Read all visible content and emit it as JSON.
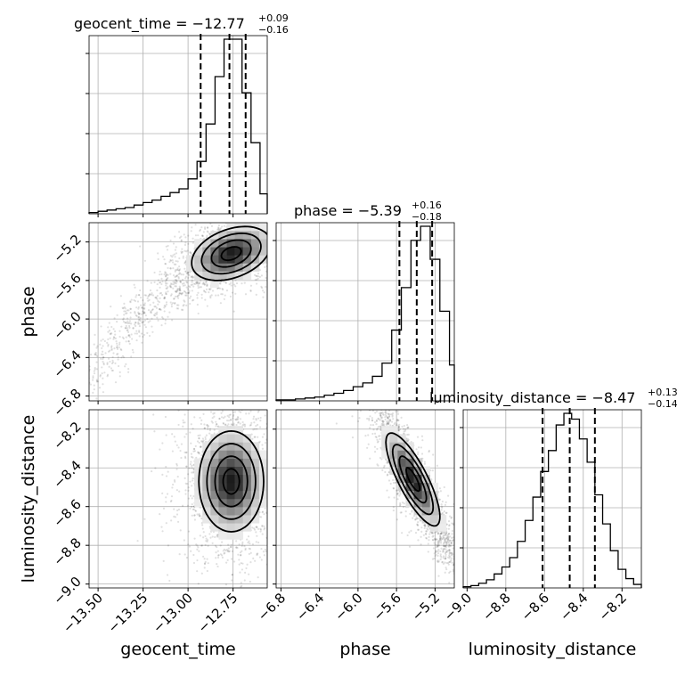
{
  "chart_data": {
    "type": "corner",
    "parameters": [
      {
        "key": "geocent_time",
        "name": "geocent_time",
        "range": [
          -13.55,
          -12.56
        ],
        "ticks": [
          -13.5,
          -13.25,
          -13.0,
          -12.75
        ],
        "tick_labels": [
          "−13.50",
          "−13.25",
          "−13.00",
          "−12.75"
        ],
        "title": {
          "base": "geocent_time = −12.77",
          "sup": "+0.09",
          "sub": "−0.16"
        },
        "quantiles": [
          -12.93,
          -12.77,
          -12.68
        ],
        "histogram": {
          "edges": [
            -13.55,
            -13.5,
            -13.45,
            -13.4,
            -13.35,
            -13.3,
            -13.25,
            -13.2,
            -13.15,
            -13.1,
            -13.05,
            -13.0,
            -12.95,
            -12.9,
            -12.85,
            -12.8,
            -12.75,
            -12.7,
            -12.65,
            -12.6,
            -12.56
          ],
          "counts": [
            1,
            2,
            3,
            4,
            5,
            7,
            9,
            11,
            14,
            17,
            20,
            28,
            42,
            72,
            110,
            140,
            140,
            97,
            57,
            16
          ]
        }
      },
      {
        "key": "phase",
        "name": "phase",
        "range": [
          -6.85,
          -5.0
        ],
        "ticks": [
          -6.8,
          -6.4,
          -6.0,
          -5.6,
          -5.2
        ],
        "tick_labels": [
          "−6.8",
          "−6.4",
          "−6.0",
          "−5.6",
          "−5.2"
        ],
        "title": {
          "base": "phase = −5.39",
          "sup": "+0.16",
          "sub": "−0.18"
        },
        "quantiles": [
          -5.57,
          -5.39,
          -5.23
        ],
        "histogram": {
          "edges": [
            -6.85,
            -6.75,
            -6.65,
            -6.55,
            -6.45,
            -6.35,
            -6.25,
            -6.15,
            -6.05,
            -5.95,
            -5.85,
            -5.75,
            -5.65,
            -5.55,
            -5.45,
            -5.35,
            -5.25,
            -5.15,
            -5.05,
            -5.0
          ],
          "counts": [
            1,
            1,
            2,
            3,
            4,
            6,
            8,
            11,
            15,
            19,
            26,
            40,
            75,
            120,
            170,
            185,
            150,
            95,
            38
          ]
        }
      },
      {
        "key": "luminosity_distance",
        "name": "luminosity_distance",
        "range": [
          -9.02,
          -8.1
        ],
        "ticks": [
          -9.0,
          -8.8,
          -8.6,
          -8.4,
          -8.2
        ],
        "tick_labels": [
          "−9.0",
          "−8.8",
          "−8.6",
          "−8.4",
          "−8.2"
        ],
        "title": {
          "base": "luminosity_distance = −8.47",
          "sup": "+0.13",
          "sub": "−0.14"
        },
        "quantiles": [
          -8.61,
          -8.47,
          -8.34
        ],
        "histogram": {
          "edges": [
            -9.02,
            -8.98,
            -8.94,
            -8.9,
            -8.86,
            -8.82,
            -8.78,
            -8.74,
            -8.7,
            -8.66,
            -8.62,
            -8.58,
            -8.54,
            -8.5,
            -8.46,
            -8.42,
            -8.38,
            -8.34,
            -8.3,
            -8.26,
            -8.22,
            -8.18,
            -8.14,
            -8.1
          ],
          "counts": [
            1,
            2,
            4,
            7,
            12,
            18,
            26,
            40,
            58,
            78,
            100,
            118,
            140,
            150,
            145,
            128,
            108,
            80,
            55,
            32,
            16,
            8,
            3
          ]
        }
      }
    ],
    "joint": [
      {
        "x": "geocent_time",
        "y": "phase",
        "mean": [
          -12.76,
          -5.32
        ],
        "sd": [
          0.11,
          0.14
        ],
        "rho": 0.35,
        "tail": "curved-left"
      },
      {
        "x": "geocent_time",
        "y": "luminosity_distance",
        "mean": [
          -12.76,
          -8.47
        ],
        "sd": [
          0.09,
          0.13
        ],
        "rho": 0.0,
        "tail": "none"
      },
      {
        "x": "phase",
        "y": "luminosity_distance",
        "mean": [
          -5.43,
          -8.46
        ],
        "sd": [
          0.14,
          0.12
        ],
        "rho": -0.8,
        "tail": "diagonal"
      }
    ],
    "grid": true,
    "axes_labels": {
      "bottom": [
        "geocent_time",
        "phase",
        "luminosity_distance"
      ],
      "left": [
        "phase",
        "luminosity_distance"
      ]
    }
  }
}
